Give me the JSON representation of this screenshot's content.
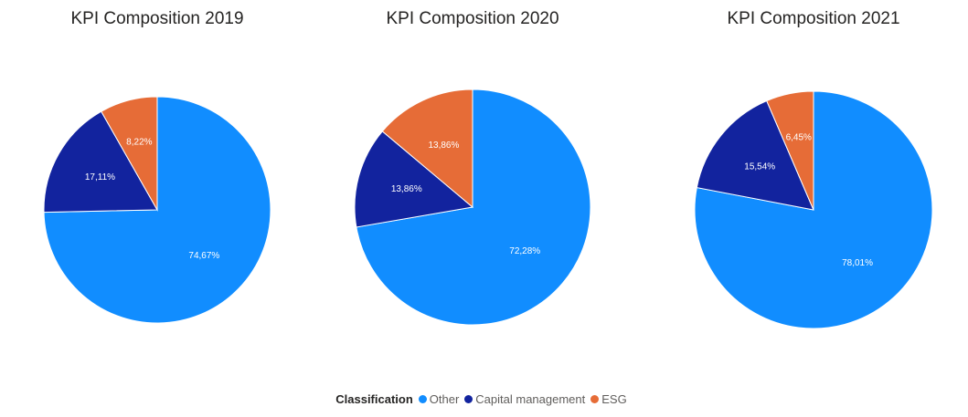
{
  "legend": {
    "title": "Classification",
    "items": [
      {
        "name": "Other",
        "color": "#118DFF"
      },
      {
        "name": "Capital management",
        "color": "#12239E"
      },
      {
        "name": "ESG",
        "color": "#E66C37"
      }
    ]
  },
  "chart_data": [
    {
      "type": "pie",
      "title": "KPI Composition 2019",
      "categories": [
        "Other",
        "Capital management",
        "ESG"
      ],
      "values": [
        74.67,
        17.11,
        8.22
      ],
      "labels": [
        "74,67%",
        "17,11%",
        "8,22%"
      ]
    },
    {
      "type": "pie",
      "title": "KPI Composition 2020",
      "categories": [
        "Other",
        "Capital management",
        "ESG"
      ],
      "values": [
        72.28,
        13.86,
        13.86
      ],
      "labels": [
        "72,28%",
        "13,86%",
        "13,86%"
      ]
    },
    {
      "type": "pie",
      "title": "KPI Composition 2021",
      "categories": [
        "Other",
        "Capital management",
        "ESG"
      ],
      "values": [
        78.01,
        15.54,
        6.45
      ],
      "labels": [
        "78,01%",
        "15,54%",
        "6,45%"
      ]
    }
  ]
}
